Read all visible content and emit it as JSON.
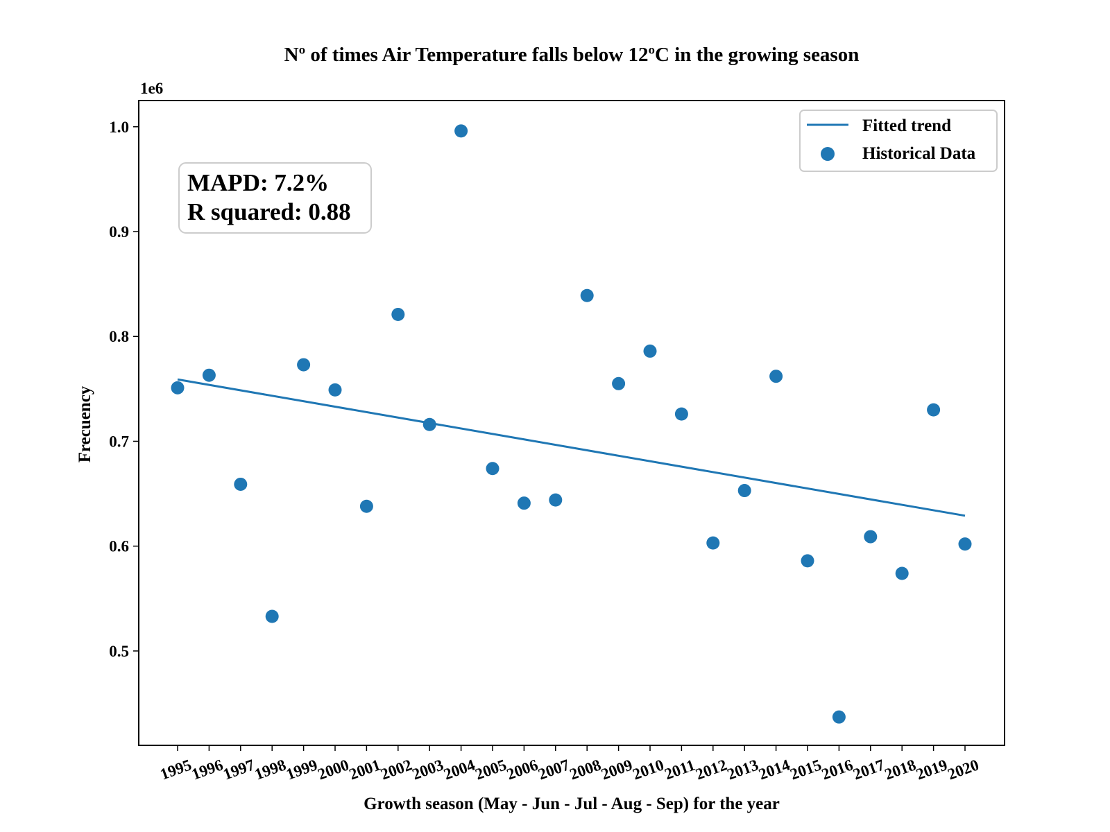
{
  "chart_data": {
    "type": "scatter",
    "title": "Nº of times Air Temperature falls below 12ºC in the growing season",
    "xlabel": "Growth season (May - Jun - Jul - Aug - Sep) for the year",
    "ylabel": "Frecuency",
    "y_offset_label": "1e6",
    "x_categories": [
      "1995",
      "1996",
      "1997",
      "1998",
      "1999",
      "2000",
      "2001",
      "2002",
      "2003",
      "2004",
      "2005",
      "2006",
      "2007",
      "2008",
      "2009",
      "2010",
      "2011",
      "2012",
      "2013",
      "2014",
      "2015",
      "2016",
      "2017",
      "2018",
      "2019",
      "2020"
    ],
    "y_ticks": [
      "0.5",
      "0.6",
      "0.7",
      "0.8",
      "0.9",
      "1.0"
    ],
    "ylim": [
      0.41,
      1.025
    ],
    "series": [
      {
        "name": "Historical Data",
        "kind": "scatter",
        "color": "#1f77b4",
        "values": [
          0.751,
          0.763,
          0.659,
          0.533,
          0.773,
          0.749,
          0.638,
          0.821,
          0.716,
          0.996,
          0.674,
          0.641,
          0.644,
          0.839,
          0.755,
          0.786,
          0.726,
          0.603,
          0.653,
          0.762,
          0.586,
          0.437,
          0.609,
          0.574,
          0.73,
          0.602
        ]
      },
      {
        "name": "Fitted trend",
        "kind": "line",
        "color": "#1f77b4",
        "start": {
          "x": "1995",
          "y": 0.759
        },
        "end": {
          "x": "2020",
          "y": 0.629
        }
      }
    ],
    "legend_position": "top-right",
    "annotation": {
      "mapd": "MAPD: 7.2%",
      "r_squared": "R squared: 0.88"
    },
    "grid": false
  }
}
